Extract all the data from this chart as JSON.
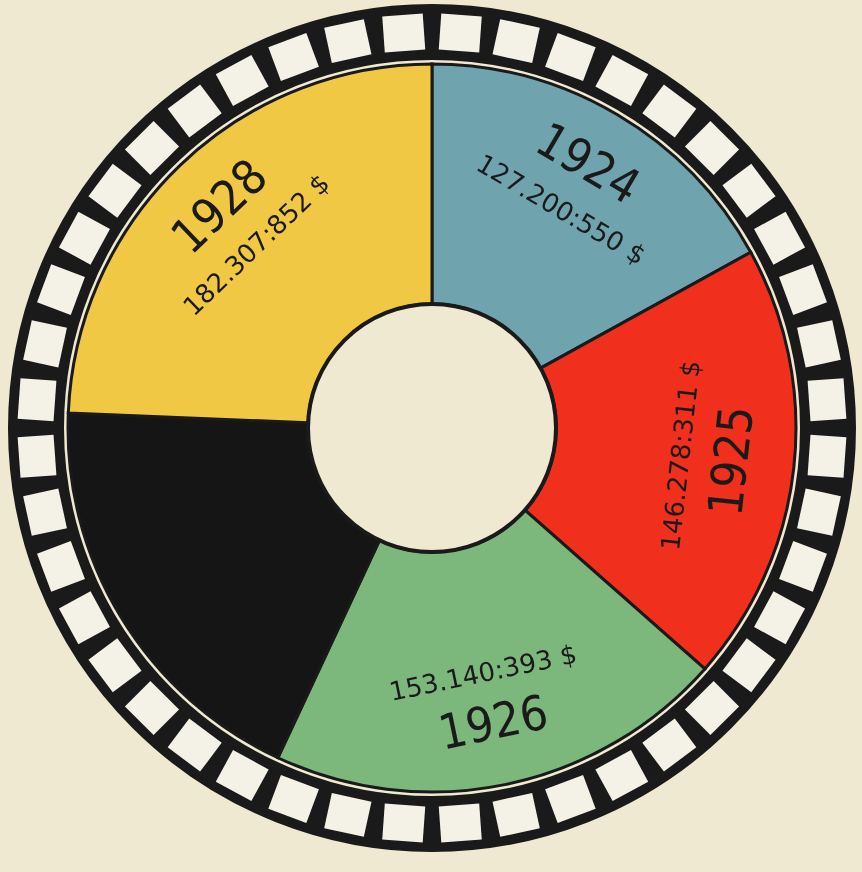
{
  "chart_data": {
    "type": "donut",
    "categories": [
      "1924",
      "1925",
      "1926",
      null,
      "1928"
    ],
    "values": [
      16.98,
      19.53,
      20.45,
      18.7,
      24.34
    ],
    "value_labels": [
      "127.200:550 $",
      "146.278:311 $",
      "153.140:393 $",
      null,
      "182.307:852 $"
    ],
    "colors": [
      "#6fa3ad",
      "#f0301c",
      "#7cb87c",
      "#151515",
      "#f0c844"
    ]
  }
}
